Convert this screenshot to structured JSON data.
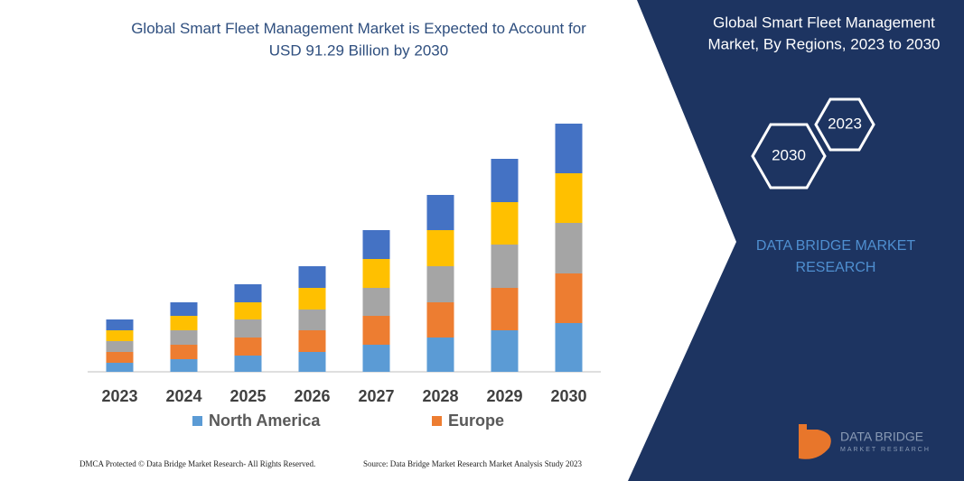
{
  "chart_data": {
    "type": "bar",
    "stacked": true,
    "title": "Global Smart Fleet Management Market is Expected to Account for USD 91.29 Billion by 2030",
    "categories": [
      "2023",
      "2024",
      "2025",
      "2026",
      "2027",
      "2028",
      "2029",
      "2030"
    ],
    "series": [
      {
        "name": "North America",
        "color": "#5b9bd5",
        "values": [
          10,
          14,
          18,
          22,
          30,
          38,
          46,
          54
        ]
      },
      {
        "name": "Europe",
        "color": "#ed7d31",
        "values": [
          12,
          16,
          20,
          24,
          32,
          39,
          47,
          55
        ]
      },
      {
        "color": "#a5a5a5",
        "values": [
          12,
          16,
          20,
          23,
          31,
          40,
          48,
          56
        ]
      },
      {
        "color": "#ffc000",
        "values": [
          12,
          16,
          19,
          24,
          32,
          40,
          47,
          55
        ]
      },
      {
        "color": "#4472c4",
        "values": [
          12,
          15,
          20,
          24,
          32,
          39,
          48,
          55
        ]
      }
    ],
    "ylim": [
      0,
      280
    ],
    "legend": "bottom"
  },
  "panel": {
    "title": "Global Smart Fleet Management Market, By Regions, 2023 to 2030",
    "hexagons": [
      "2023",
      "2030"
    ],
    "brand": "DATA BRIDGE MARKET RESEARCH"
  },
  "logo": {
    "name": "DATA BRIDGE",
    "subtitle": "MARKET RESEARCH"
  },
  "footer": {
    "copyright": "DMCA Protected © Data Bridge Market Research- All Rights Reserved.",
    "source": "Source: Data Bridge Market Research  Market Analysis Study 2023"
  }
}
